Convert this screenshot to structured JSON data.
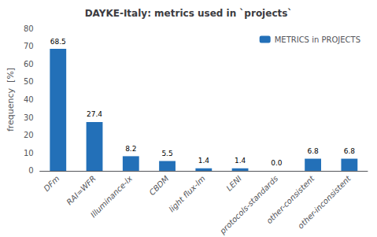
{
  "chart_data": {
    "type": "bar",
    "title": "DAYKE-Italy: metrics used in `projects`",
    "categories": [
      "DFm",
      "RAI=WFR",
      "Illuminance-lx",
      "CBDM",
      "light flux-lm",
      "LENI",
      "protocols-standards",
      "other-consistent",
      "other-inconsistent"
    ],
    "series": [
      {
        "name": "METRICS in PROJECTS",
        "color": "#2370B8",
        "values": [
          68.5,
          27.4,
          8.2,
          5.5,
          1.4,
          1.4,
          0.0,
          6.8,
          6.8
        ],
        "value_labels": [
          "68.5",
          "27.4",
          "8.2",
          "5.5",
          "1.4",
          "1.4",
          "0.0",
          "6.8",
          "6.8"
        ]
      }
    ],
    "ylabel": "frequency  [%]",
    "ylim": [
      0,
      80
    ],
    "yticks": [
      0,
      10,
      20,
      30,
      40,
      50,
      60,
      70,
      80
    ],
    "grid": false,
    "legend": "upper right",
    "data_labels": true
  }
}
